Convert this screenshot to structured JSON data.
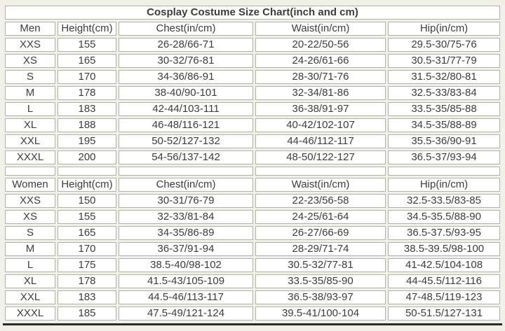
{
  "colors": {
    "page_background": "#f1f0e9",
    "cell_background": "#ffffff",
    "cell_border": "#b3b2a8",
    "text": "#3d3d3d",
    "title_text": "#121212",
    "bottom_bar": "#2b2b28"
  },
  "chart_data": {
    "type": "table",
    "title": "Cosplay Costume Size Chart(inch and cm)",
    "sections": [
      {
        "header": [
          "Men",
          "Height(cm)",
          "Chest(in/cm)",
          "Waist(in/cm)",
          "Hip(in/cm)"
        ],
        "rows": [
          [
            "XXS",
            "155",
            "26-28/66-71",
            "20-22/50-56",
            "29.5-30/75-76"
          ],
          [
            "XS",
            "165",
            "30-32/76-81",
            "24-26/61-66",
            "30.5-31/77-79"
          ],
          [
            "S",
            "170",
            "34-36/86-91",
            "28-30/71-76",
            "31.5-32/80-81"
          ],
          [
            "M",
            "178",
            "38-40/90-101",
            "32-34/81-86",
            "32.5-33/83-84"
          ],
          [
            "L",
            "183",
            "42-44/103-111",
            "36-38/91-97",
            "33.5-35/85-88"
          ],
          [
            "XL",
            "188",
            "46-48/116-121",
            "40-42/102-107",
            "34.5-35/88-89"
          ],
          [
            "XXL",
            "195",
            "50-52/127-132",
            "44-46/112-117",
            "35.5-36/90-91"
          ],
          [
            "XXXL",
            "200",
            "54-56/137-142",
            "48-50/122-127",
            "36.5-37/93-94"
          ]
        ]
      },
      {
        "header": [
          "Women",
          "Height(cm)",
          "Chest(in/cm)",
          "Waist(in/cm)",
          "Hip(in/cm)"
        ],
        "rows": [
          [
            "XXS",
            "150",
            "30-31/76-79",
            "22-23/56-58",
            "32.5-33.5/83-85"
          ],
          [
            "XS",
            "155",
            "32-33/81-84",
            "24-25/61-64",
            "34.5-35.5/88-90"
          ],
          [
            "S",
            "165",
            "34-35/86-89",
            "26-27/66-69",
            "36.5-37.5/93-95"
          ],
          [
            "M",
            "170",
            "36-37/91-94",
            "28-29/71-74",
            "38.5-39.5/98-100"
          ],
          [
            "L",
            "175",
            "38.5-40/98-102",
            "30.5-32/77-81",
            "41-42.5/104-108"
          ],
          [
            "XL",
            "178",
            "41.5-43/105-109",
            "33.5-35/85-90",
            "44-45.5/112-116"
          ],
          [
            "XXL",
            "183",
            "44.5-46/113-117",
            "36.5-38/93-97",
            "47-48.5/119-123"
          ],
          [
            "XXXL",
            "185",
            "47.5-49/121-124",
            "39.5-41/100-104",
            "50-51.5/127-131"
          ]
        ]
      }
    ]
  }
}
